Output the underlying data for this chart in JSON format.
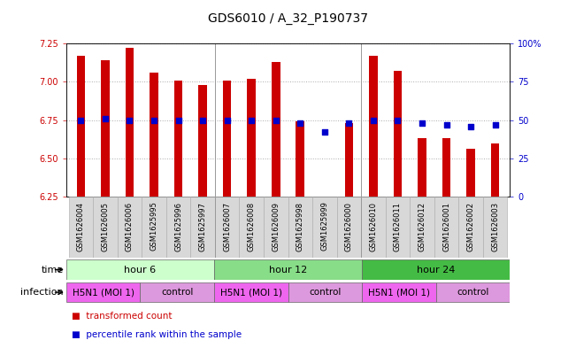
{
  "title": "GDS6010 / A_32_P190737",
  "samples": [
    "GSM1626004",
    "GSM1626005",
    "GSM1626006",
    "GSM1625995",
    "GSM1625996",
    "GSM1625997",
    "GSM1626007",
    "GSM1626008",
    "GSM1626009",
    "GSM1625998",
    "GSM1625999",
    "GSM1626000",
    "GSM1626010",
    "GSM1626011",
    "GSM1626012",
    "GSM1626001",
    "GSM1626002",
    "GSM1626003"
  ],
  "bar_values": [
    7.17,
    7.14,
    7.22,
    7.06,
    7.01,
    6.98,
    7.01,
    7.02,
    7.13,
    6.74,
    6.25,
    6.73,
    7.17,
    7.07,
    6.63,
    6.63,
    6.56,
    6.6
  ],
  "dot_values": [
    50,
    51,
    50,
    50,
    50,
    50,
    50,
    50,
    50,
    48,
    42,
    48,
    50,
    50,
    48,
    47,
    46,
    47
  ],
  "ylim": [
    6.25,
    7.25
  ],
  "yticks": [
    6.25,
    6.5,
    6.75,
    7.0,
    7.25
  ],
  "y2lim": [
    0,
    100
  ],
  "y2ticks": [
    0,
    25,
    50,
    75,
    100
  ],
  "bar_color": "#cc0000",
  "dot_color": "#0000cc",
  "bar_bottom": 6.25,
  "bar_width": 0.35,
  "time_groups": [
    {
      "label": "hour 6",
      "start": 0,
      "end": 6,
      "color": "#ccffcc"
    },
    {
      "label": "hour 12",
      "start": 6,
      "end": 12,
      "color": "#88dd88"
    },
    {
      "label": "hour 24",
      "start": 12,
      "end": 18,
      "color": "#44bb44"
    }
  ],
  "infection_groups": [
    {
      "label": "H5N1 (MOI 1)",
      "start": 0,
      "end": 3,
      "color": "#ee66ee"
    },
    {
      "label": "control",
      "start": 3,
      "end": 6,
      "color": "#dd99dd"
    },
    {
      "label": "H5N1 (MOI 1)",
      "start": 6,
      "end": 9,
      "color": "#ee66ee"
    },
    {
      "label": "control",
      "start": 9,
      "end": 12,
      "color": "#dd99dd"
    },
    {
      "label": "H5N1 (MOI 1)",
      "start": 12,
      "end": 15,
      "color": "#ee66ee"
    },
    {
      "label": "control",
      "start": 15,
      "end": 18,
      "color": "#dd99dd"
    }
  ],
  "legend_items": [
    {
      "label": "transformed count",
      "color": "#cc0000"
    },
    {
      "label": "percentile rank within the sample",
      "color": "#0000cc"
    }
  ],
  "bg_color": "#ffffff",
  "label_color_left": "#cc0000",
  "label_color_right": "#0000cc",
  "title_fontsize": 10,
  "tick_fontsize": 7,
  "sample_fontsize": 6,
  "group_fontsize": 8,
  "legend_fontsize": 7.5
}
